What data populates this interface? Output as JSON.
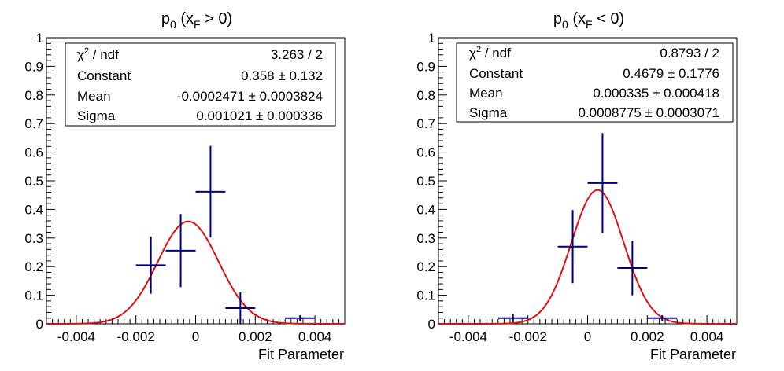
{
  "chart_data": [
    {
      "type": "scatter",
      "title_main": "p",
      "title_sub0": "0",
      "title_open": " (x",
      "title_subF": "F",
      "title_rest": " > 0)",
      "xlabel": "Fit Parameter",
      "ylabel": "",
      "xlim": [
        -0.005,
        0.005
      ],
      "ylim": [
        0,
        1
      ],
      "xticks": [
        -0.004,
        -0.002,
        0,
        0.002,
        0.004
      ],
      "xtick_labels": [
        "-0.004",
        "-0.002",
        "0",
        "0.002",
        "0.004"
      ],
      "yticks": [
        0,
        0.1,
        0.2,
        0.3,
        0.4,
        0.5,
        0.6,
        0.7,
        0.8,
        0.9,
        1
      ],
      "ytick_labels": [
        "0",
        "0.1",
        "0.2",
        "0.3",
        "0.4",
        "0.5",
        "0.6",
        "0.7",
        "0.8",
        "0.9",
        "1"
      ],
      "grid": false,
      "points": [
        {
          "x": -0.0015,
          "y": 0.205,
          "xerr": 0.0005,
          "yerr": 0.1
        },
        {
          "x": -0.0005,
          "y": 0.256,
          "xerr": 0.0005,
          "yerr": 0.128
        },
        {
          "x": 0.0005,
          "y": 0.462,
          "xerr": 0.0005,
          "yerr": 0.16
        },
        {
          "x": 0.0015,
          "y": 0.055,
          "xerr": 0.0005,
          "yerr": 0.055
        },
        {
          "x": 0.0035,
          "y": 0.02,
          "xerr": 0.0005,
          "yerr": 0.01
        }
      ],
      "fit": {
        "constant": 0.358,
        "mean": -0.0002471,
        "sigma": 0.001021,
        "color": "#e01010"
      },
      "marker_color": "#00007f",
      "stats": {
        "chi_label": "χ",
        "chi_sup": "2",
        "chi_rest": " / ndf",
        "chi_value": "3.263 / 2",
        "rows": [
          {
            "label": "Constant",
            "value": "0.358",
            "error": "0.132"
          },
          {
            "label": "Mean",
            "value": "-0.0002471",
            "error": "0.0003824"
          },
          {
            "label": "Sigma",
            "value": "0.001021",
            "error": "0.000336"
          }
        ],
        "pm": "±"
      }
    },
    {
      "type": "scatter",
      "title_main": "p",
      "title_sub0": "0",
      "title_open": " (x",
      "title_subF": "F",
      "title_rest": " < 0)",
      "xlabel": "Fit Parameter",
      "ylabel": "",
      "xlim": [
        -0.005,
        0.005
      ],
      "ylim": [
        0,
        1
      ],
      "xticks": [
        -0.004,
        -0.002,
        0,
        0.002,
        0.004
      ],
      "xtick_labels": [
        "-0.004",
        "-0.002",
        "0",
        "0.002",
        "0.004"
      ],
      "yticks": [
        0,
        0.1,
        0.2,
        0.3,
        0.4,
        0.5,
        0.6,
        0.7,
        0.8,
        0.9,
        1
      ],
      "ytick_labels": [
        "0",
        "0.1",
        "0.2",
        "0.3",
        "0.4",
        "0.5",
        "0.6",
        "0.7",
        "0.8",
        "0.9",
        "1"
      ],
      "grid": false,
      "points": [
        {
          "x": -0.0025,
          "y": 0.02,
          "xerr": 0.0005,
          "yerr": 0.015
        },
        {
          "x": -0.0005,
          "y": 0.27,
          "xerr": 0.0005,
          "yerr": 0.128
        },
        {
          "x": 0.0005,
          "y": 0.492,
          "xerr": 0.0005,
          "yerr": 0.175
        },
        {
          "x": 0.0015,
          "y": 0.195,
          "xerr": 0.0005,
          "yerr": 0.095
        },
        {
          "x": 0.0025,
          "y": 0.02,
          "xerr": 0.0005,
          "yerr": 0.01
        }
      ],
      "fit": {
        "constant": 0.4679,
        "mean": 0.000335,
        "sigma": 0.0008775,
        "color": "#e01010"
      },
      "marker_color": "#00007f",
      "stats": {
        "chi_label": "χ",
        "chi_sup": "2",
        "chi_rest": " / ndf",
        "chi_value": "0.8793 / 2",
        "rows": [
          {
            "label": "Constant",
            "value": "0.4679",
            "error": "0.1776"
          },
          {
            "label": "Mean",
            "value": "0.000335",
            "error": "0.000418"
          },
          {
            "label": "Sigma",
            "value": "0.0008775",
            "error": "0.0003071"
          }
        ],
        "pm": "±"
      }
    }
  ]
}
